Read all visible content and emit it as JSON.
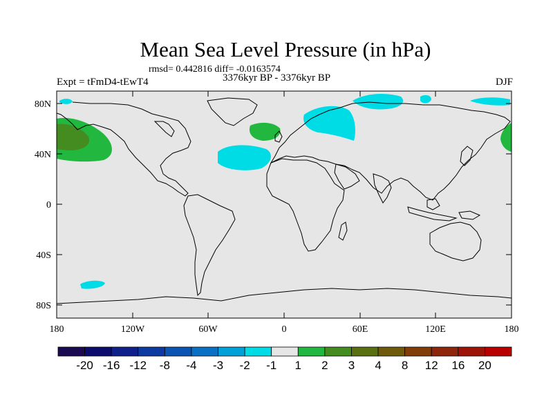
{
  "title": "Mean Sea Level Pressure (in hPa)",
  "stats": "rmsd= 0.442816 diff= -0.0163574",
  "experiment": "Expt = tFmD4-tEwT4",
  "period": "3376kyr BP - 3376kyr BP",
  "season": "DJF",
  "axes": {
    "lat_labels": [
      "80N",
      "40N",
      "0",
      "40S",
      "80S"
    ],
    "lon_labels": [
      "180",
      "120W",
      "60W",
      "0",
      "60E",
      "120E",
      "180"
    ]
  },
  "colorbar": {
    "labels": [
      "-20",
      "-16",
      "-12",
      "-8",
      "-4",
      "-3",
      "-2",
      "-1",
      "1",
      "2",
      "3",
      "4",
      "8",
      "12",
      "16",
      "20"
    ],
    "colors": [
      "#1a0a50",
      "#0c0c6e",
      "#10208a",
      "#0c3aa0",
      "#0a55b4",
      "#0a70c4",
      "#00a0d8",
      "#00dce6",
      "#e6e6e6",
      "#22b840",
      "#448c20",
      "#5a7010",
      "#6e5a0a",
      "#823c0a",
      "#8e260c",
      "#9c1408",
      "#b80000"
    ]
  },
  "colors": {
    "land_sea_bg": "#e6e6e6",
    "negative_anomaly": "#00dce6",
    "positive_anomaly": "#22b840",
    "strong_positive": "#448c20"
  }
}
